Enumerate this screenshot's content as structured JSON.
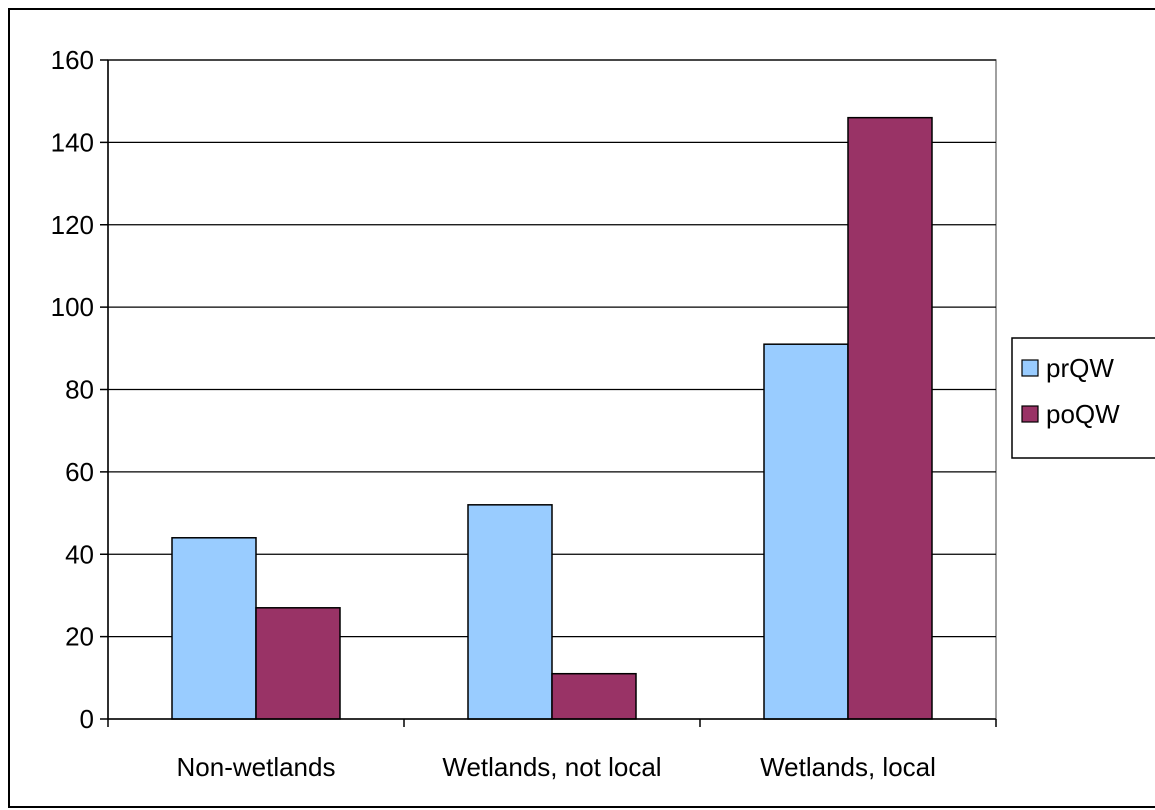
{
  "chart_data": {
    "type": "bar",
    "categories": [
      "Non-wetlands",
      "Wetlands, not local",
      "Wetlands, local"
    ],
    "series": [
      {
        "name": "prQW",
        "values": [
          44,
          52,
          91
        ],
        "color": "#99ccff"
      },
      {
        "name": "poQW",
        "values": [
          27,
          11,
          146
        ],
        "color": "#993366"
      }
    ],
    "title": "",
    "xlabel": "",
    "ylabel": "",
    "ylim": [
      0,
      160
    ],
    "yticks": [
      0,
      20,
      40,
      60,
      80,
      100,
      120,
      140,
      160
    ],
    "grid": true,
    "legend_position": "right",
    "plot_background": "#ffffff",
    "grid_color": "#000000"
  }
}
